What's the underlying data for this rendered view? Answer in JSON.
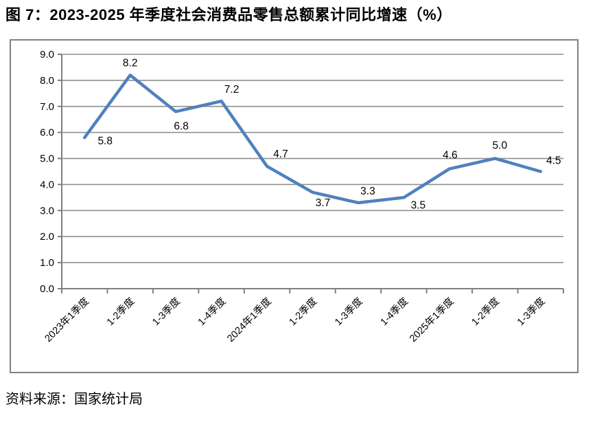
{
  "figure": {
    "title": "图 7：2023-2025 年季度社会消费品零售总额累计同比增速（%）",
    "source": "资料来源：国家统计局"
  },
  "chart_data": {
    "type": "line",
    "title": "2023-2025 年季度社会消费品零售总额累计同比增速（%）",
    "categories": [
      "2023年1季度",
      "1-2季度",
      "1-3季度",
      "1-4季度",
      "2024年1季度",
      "1-2季度",
      "1-3季度",
      "1-4季度",
      "2025年1季度",
      "1-2季度",
      "1-3季度"
    ],
    "values": [
      5.8,
      8.2,
      6.8,
      7.2,
      4.7,
      3.7,
      3.3,
      3.5,
      4.6,
      5.0,
      4.5
    ],
    "data_labels": [
      "5.8",
      "8.2",
      "6.8",
      "7.2",
      "4.7",
      "3.7",
      "3.3",
      "3.5",
      "4.6",
      "5.0",
      "4.5"
    ],
    "xlabel": "",
    "ylabel": "",
    "ylim": [
      0,
      9
    ],
    "ytick_step": 1,
    "yticks": [
      "0.0",
      "1.0",
      "2.0",
      "3.0",
      "4.0",
      "5.0",
      "6.0",
      "7.0",
      "8.0",
      "9.0"
    ],
    "grid": "horizontal",
    "legend": "none",
    "colors": {
      "line": "#4F81BD",
      "grid": "#8F8F8F",
      "axis": "#7F7F7F",
      "frame_border": "#808080",
      "text": "#000000"
    }
  }
}
